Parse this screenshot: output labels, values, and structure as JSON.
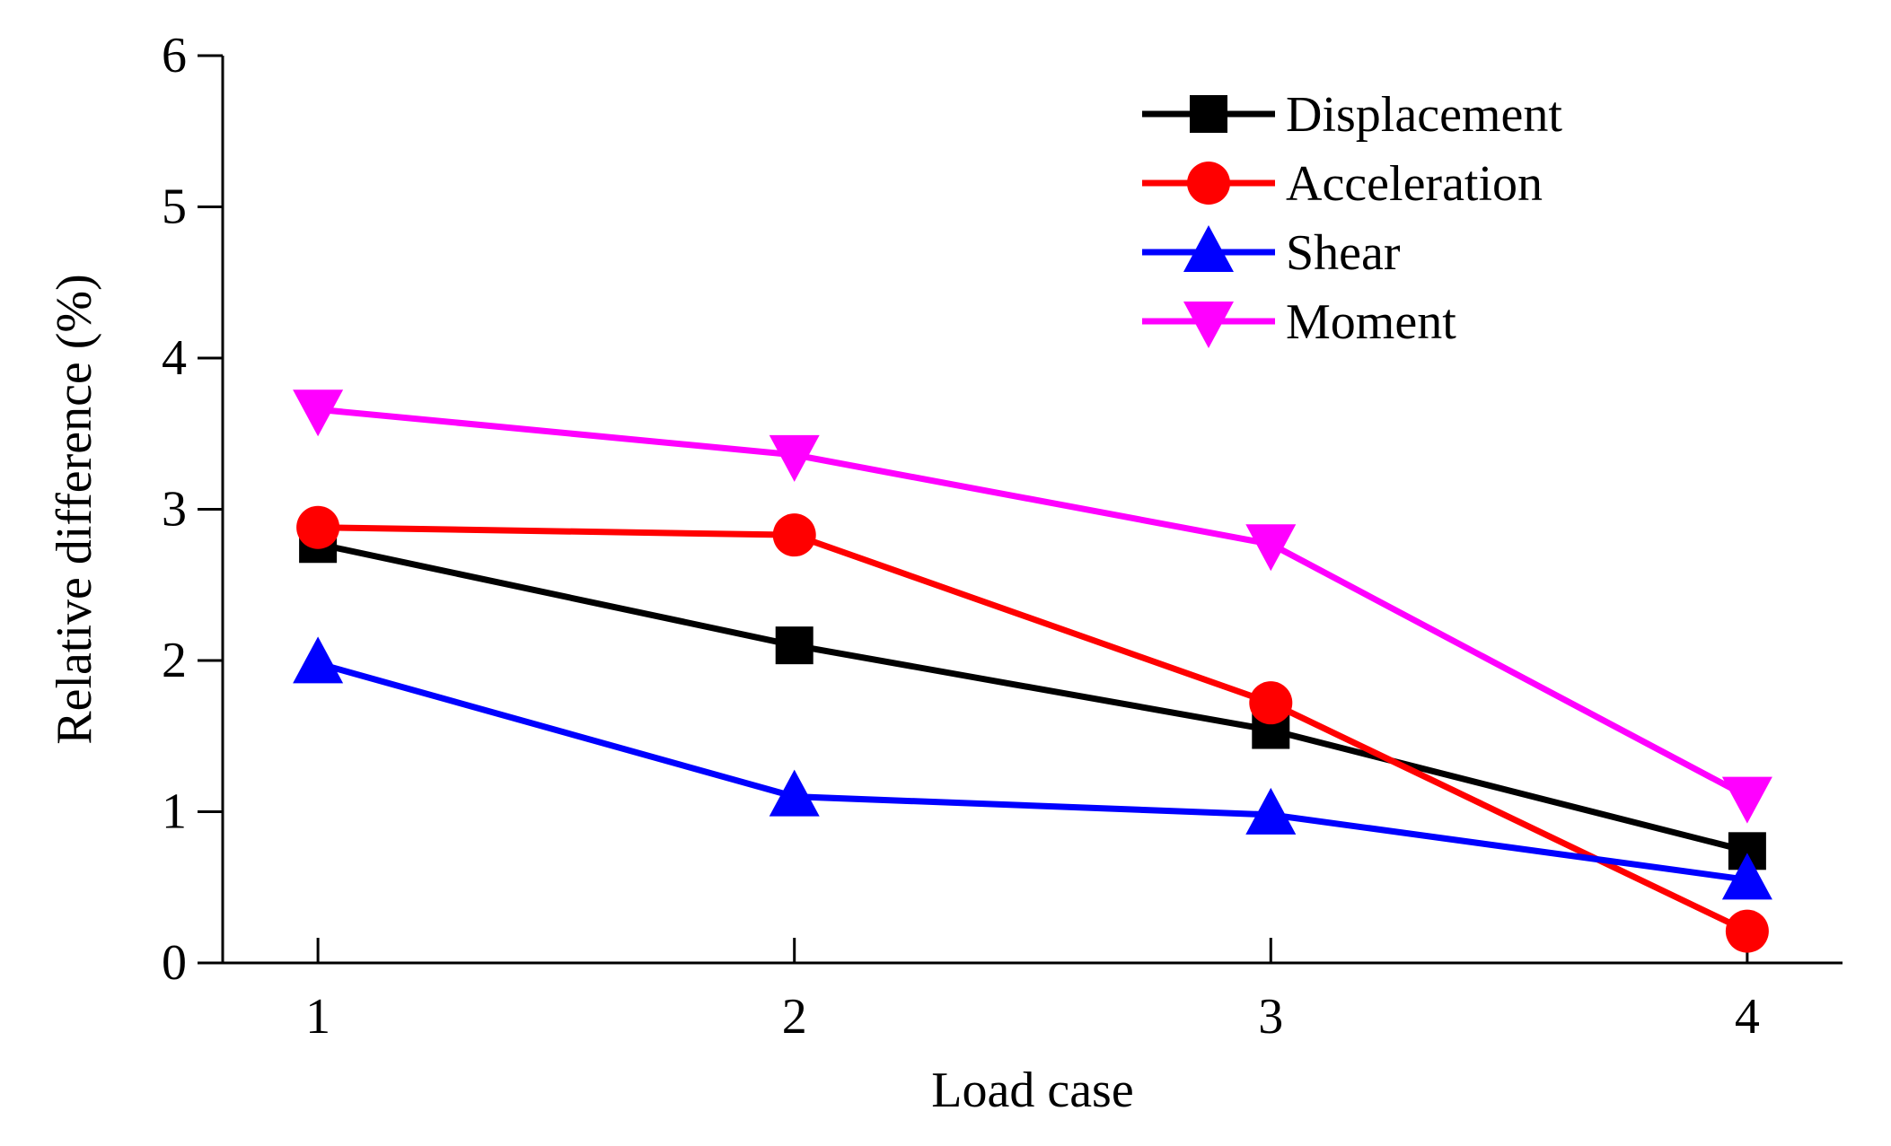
{
  "chart_data": {
    "type": "line",
    "title": "",
    "xlabel": "Load case",
    "ylabel": "Relative difference (%)",
    "x": [
      1,
      2,
      3,
      4
    ],
    "xlim": [
      0.8,
      4.2
    ],
    "ylim": [
      0,
      6
    ],
    "x_ticks": [
      "1",
      "2",
      "3",
      "4"
    ],
    "y_ticks": [
      "0",
      "1",
      "2",
      "3",
      "4",
      "5",
      "6"
    ],
    "grid": false,
    "legend_position": "top-right",
    "series": [
      {
        "name": "Displacement",
        "color": "#000000",
        "marker": "square",
        "values": [
          2.77,
          2.1,
          1.54,
          0.74
        ]
      },
      {
        "name": "Acceleration",
        "color": "#ff0000",
        "marker": "circle",
        "values": [
          2.88,
          2.83,
          1.72,
          0.21
        ]
      },
      {
        "name": "Shear",
        "color": "#0000ff",
        "marker": "triangle-up",
        "values": [
          1.98,
          1.1,
          0.98,
          0.55
        ]
      },
      {
        "name": "Moment",
        "color": "#ff00ff",
        "marker": "triangle-down",
        "values": [
          3.66,
          3.36,
          2.77,
          1.1
        ]
      }
    ]
  }
}
